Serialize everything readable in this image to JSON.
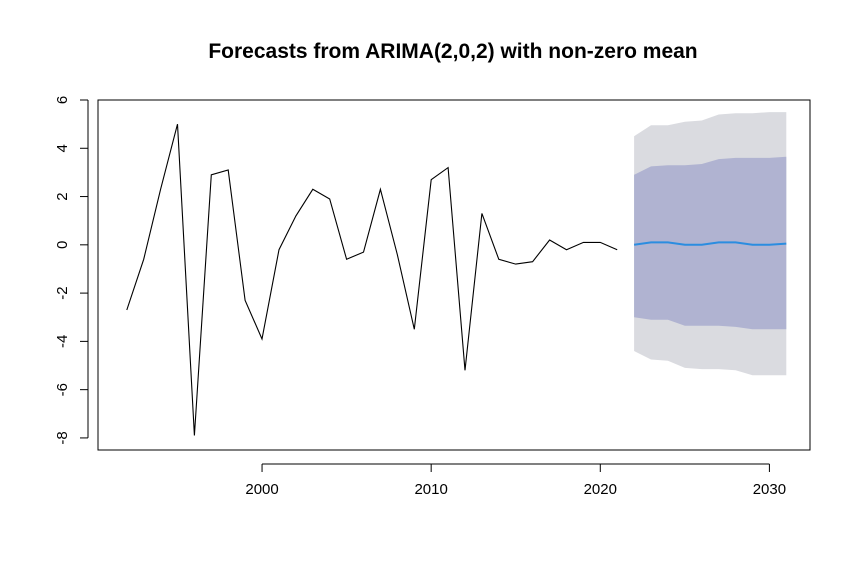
{
  "chart_data": {
    "type": "line",
    "title": "Forecasts from ARIMA(2,0,2) with non-zero mean",
    "xlabel": "",
    "ylabel": "",
    "xlim": [
      1990.3,
      2032.4
    ],
    "ylim": [
      -8.5,
      6.0
    ],
    "x_ticks": [
      2000,
      2010,
      2020,
      2030
    ],
    "x_tick_labels": [
      "2000",
      "2010",
      "2020",
      "2030"
    ],
    "y_ticks": [
      -8,
      -6,
      -4,
      -2,
      0,
      2,
      4,
      6
    ],
    "y_tick_labels": [
      "-8",
      "-6",
      "-4",
      "-2",
      "0",
      "2",
      "4",
      "6"
    ],
    "grid": false,
    "legend": "none",
    "colors": {
      "history": "#000000",
      "forecast_mean": "#2b8de0",
      "band_80": "#b0b3d1",
      "band_95": "#dadbe0"
    },
    "series": [
      {
        "role": "history",
        "x": [
          1992,
          1993,
          1994,
          1995,
          1996,
          1997,
          1998,
          1999,
          2000,
          2001,
          2002,
          2003,
          2004,
          2005,
          2006,
          2007,
          2008,
          2009,
          2010,
          2011,
          2012,
          2013,
          2014,
          2015,
          2016,
          2017,
          2018,
          2019,
          2020,
          2021
        ],
        "values": [
          -2.7,
          -0.6,
          2.3,
          5.0,
          -7.9,
          2.9,
          3.1,
          -2.3,
          -3.9,
          -0.2,
          1.2,
          2.3,
          1.9,
          -0.6,
          -0.3,
          2.3,
          -0.4,
          -3.5,
          2.7,
          3.2,
          -5.2,
          1.3,
          -0.6,
          -0.8,
          -0.7,
          0.2,
          -0.2,
          0.1,
          0.1,
          -0.2
        ]
      },
      {
        "role": "forecast",
        "x": [
          2022,
          2023,
          2024,
          2025,
          2026,
          2027,
          2028,
          2029,
          2030,
          2031
        ],
        "mean": [
          0.0,
          0.1,
          0.1,
          0.0,
          0.0,
          0.1,
          0.1,
          0.0,
          0.0,
          0.05
        ],
        "lo80": [
          -3.0,
          -3.1,
          -3.1,
          -3.35,
          -3.35,
          -3.35,
          -3.4,
          -3.5,
          -3.5,
          -3.5
        ],
        "hi80": [
          2.9,
          3.25,
          3.3,
          3.3,
          3.35,
          3.55,
          3.6,
          3.6,
          3.6,
          3.65
        ],
        "lo95": [
          -4.4,
          -4.75,
          -4.8,
          -5.1,
          -5.15,
          -5.15,
          -5.2,
          -5.4,
          -5.4,
          -5.4
        ],
        "hi95": [
          4.5,
          4.95,
          4.95,
          5.1,
          5.15,
          5.4,
          5.45,
          5.45,
          5.5,
          5.5
        ]
      }
    ]
  }
}
